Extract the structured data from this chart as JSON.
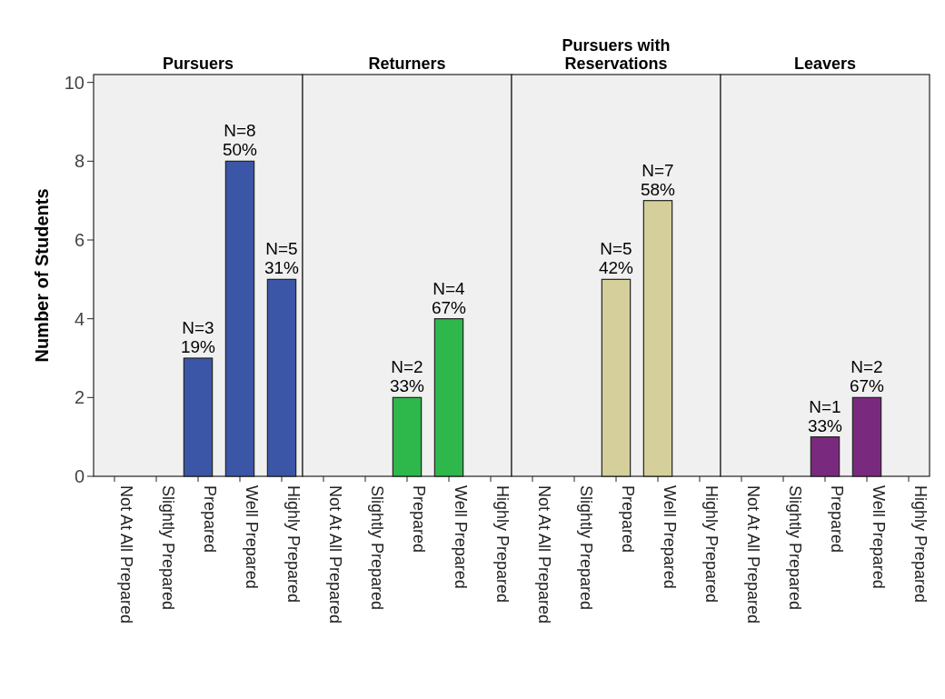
{
  "chart_data": [
    {
      "type": "bar",
      "title": "Pursuers",
      "ylabel": "Number of Students",
      "categories": [
        "Not At All Prepared",
        "Slightly Prepared",
        "Prepared",
        "Well Prepared",
        "Highly Prepared"
      ],
      "values": [
        null,
        null,
        3,
        8,
        5
      ],
      "color": "#3b56a6",
      "value_labels": [
        null,
        null,
        "N=3\n19%",
        "N=8\n50%",
        "N=5\n31%"
      ],
      "ylim": [
        0,
        10.2
      ],
      "yticks": [
        0,
        2,
        4,
        6,
        8,
        10
      ]
    },
    {
      "type": "bar",
      "title": "Returners",
      "categories": [
        "Not At All Prepared",
        "Slightly Prepared",
        "Prepared",
        "Well Prepared",
        "Highly Prepared"
      ],
      "values": [
        null,
        null,
        2,
        4,
        null
      ],
      "color": "#2eb84b",
      "value_labels": [
        null,
        null,
        "N=2\n33%",
        "N=4\n67%",
        null
      ],
      "ylim": [
        0,
        10.2
      ],
      "tick_labels": "x"
    },
    {
      "type": "bar",
      "title": "Pursuers with Reservations",
      "categories": [
        "Not At All Prepared",
        "Slightly Prepared",
        "Prepared",
        "Well Prepared",
        "Highly Prepared"
      ],
      "values": [
        null,
        null,
        5,
        7,
        null
      ],
      "color": "#d5d09b",
      "value_labels": [
        null,
        null,
        "N=5\n42%",
        "N=7\n58%",
        null
      ],
      "ylim": [
        0,
        10.2
      ],
      "tick_labels": "x"
    },
    {
      "type": "bar",
      "title": "Leavers",
      "categories": [
        "Not At All Prepared",
        "Slightly Prepared",
        "Prepared",
        "Well Prepared",
        "Highly Prepared"
      ],
      "values": [
        null,
        null,
        1,
        2,
        null
      ],
      "color": "#7a2a7e",
      "value_labels": [
        null,
        null,
        "N=1\n33%",
        "N=2\n67%",
        null
      ],
      "ylim": [
        0,
        10.2
      ],
      "tick_labels": "x"
    }
  ]
}
